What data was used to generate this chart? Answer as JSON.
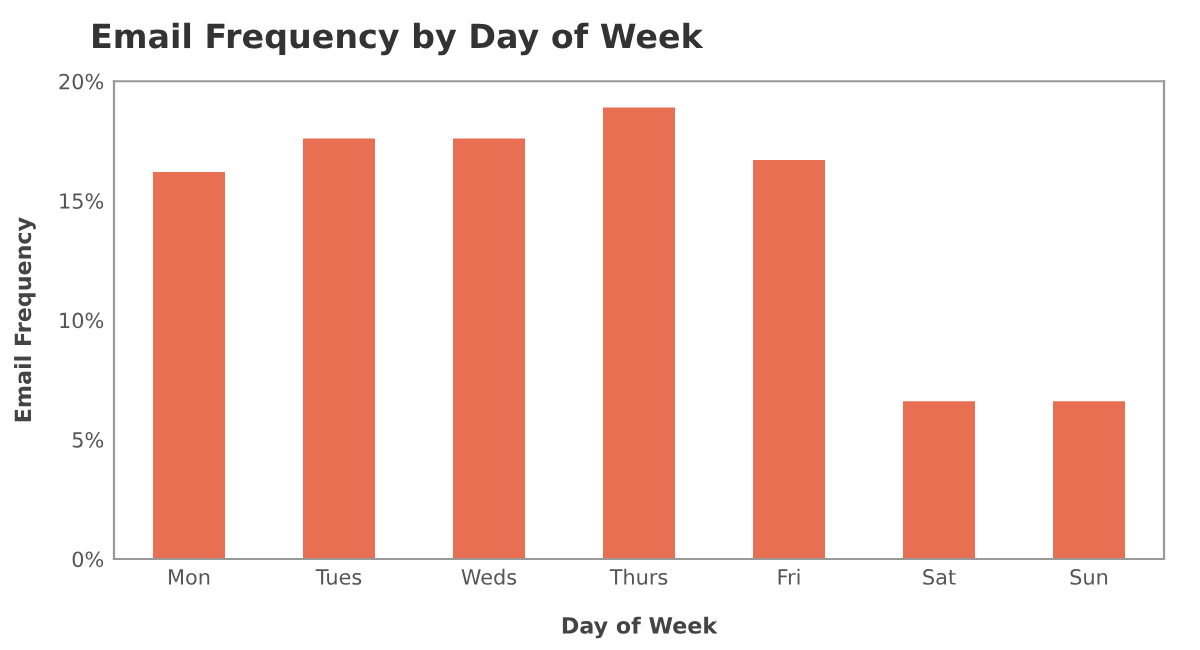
{
  "chart_data": {
    "type": "bar",
    "title": "Email Frequency by Day of Week",
    "xlabel": "Day of Week",
    "ylabel": "Email Frequency",
    "categories": [
      "Mon",
      "Tues",
      "Weds",
      "Thurs",
      "Fri",
      "Sat",
      "Sun"
    ],
    "values": [
      16.2,
      17.6,
      17.6,
      18.9,
      16.7,
      6.6,
      6.6
    ],
    "color": "#e86f52",
    "ylim": [
      0,
      20
    ],
    "yticks": [
      {
        "value": 0,
        "label": "0%"
      },
      {
        "value": 5,
        "label": "5%"
      },
      {
        "value": 10,
        "label": "10%"
      },
      {
        "value": 15,
        "label": "15%"
      },
      {
        "value": 20,
        "label": "20%"
      }
    ],
    "grid": false
  }
}
